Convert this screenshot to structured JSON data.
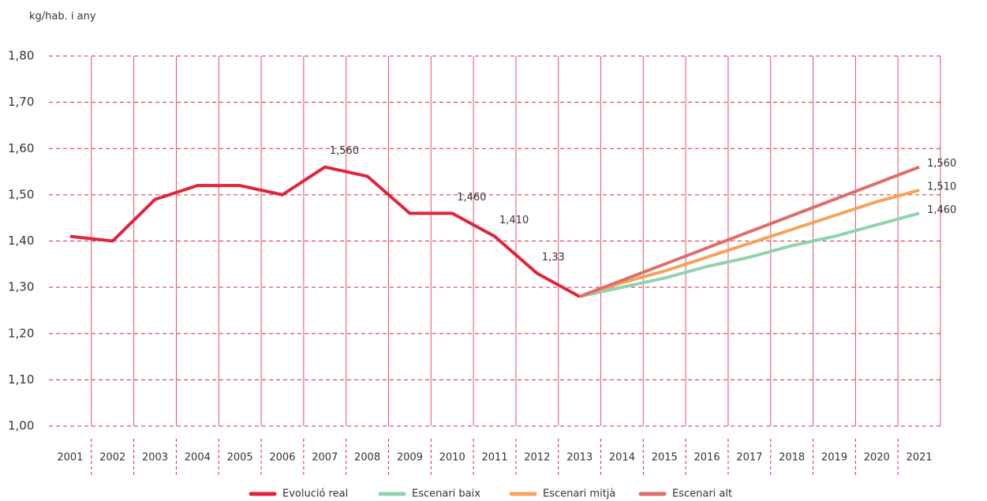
{
  "chart_data": {
    "type": "line",
    "y_axis_label": "kg/hab. i any",
    "categories": [
      "2001",
      "2002",
      "2003",
      "2004",
      "2005",
      "2006",
      "2007",
      "2008",
      "2009",
      "2010",
      "2011",
      "2012",
      "2013",
      "2014",
      "2015",
      "2016",
      "2017",
      "2018",
      "2019",
      "2020",
      "2021"
    ],
    "ylim": [
      1.0,
      1.8
    ],
    "yticks": [
      {
        "value": 1.0,
        "label": "1,00"
      },
      {
        "value": 1.1,
        "label": "1,10"
      },
      {
        "value": 1.2,
        "label": "1,20"
      },
      {
        "value": 1.3,
        "label": "1,30"
      },
      {
        "value": 1.4,
        "label": "1,40"
      },
      {
        "value": 1.5,
        "label": "1,50"
      },
      {
        "value": 1.6,
        "label": "1,60"
      },
      {
        "value": 1.7,
        "label": "1,70"
      },
      {
        "value": 1.8,
        "label": "1,80"
      }
    ],
    "grid": true,
    "grid_color": "#e0243c",
    "series": [
      {
        "name": "Evolució real",
        "color": "#e0243c",
        "width": 4,
        "values": [
          1.41,
          1.4,
          1.49,
          1.52,
          1.52,
          1.5,
          1.56,
          1.54,
          1.46,
          1.46,
          1.41,
          1.33,
          1.28,
          null,
          null,
          null,
          null,
          null,
          null,
          null,
          null
        ],
        "value_labels": [
          null,
          null,
          null,
          null,
          null,
          null,
          "1,560",
          null,
          null,
          "1,460",
          "1,410",
          "1,33",
          null,
          null,
          null,
          null,
          null,
          null,
          null,
          null,
          null
        ]
      },
      {
        "name": "Escenari baix",
        "color": "#8fd3b0",
        "width": 4,
        "values": [
          null,
          null,
          null,
          null,
          null,
          null,
          null,
          null,
          null,
          null,
          null,
          null,
          1.28,
          1.3,
          1.32,
          1.345,
          1.365,
          1.39,
          1.41,
          1.435,
          1.46
        ],
        "value_labels": [
          null,
          null,
          null,
          null,
          null,
          null,
          null,
          null,
          null,
          null,
          null,
          null,
          null,
          null,
          null,
          null,
          null,
          null,
          null,
          null,
          "1,460"
        ]
      },
      {
        "name": "Escenari mitjà",
        "color": "#f5a35a",
        "width": 4,
        "values": [
          null,
          null,
          null,
          null,
          null,
          null,
          null,
          null,
          null,
          null,
          null,
          null,
          1.28,
          1.31,
          1.335,
          1.365,
          1.395,
          1.425,
          1.455,
          1.485,
          1.51
        ],
        "value_labels": [
          null,
          null,
          null,
          null,
          null,
          null,
          null,
          null,
          null,
          null,
          null,
          null,
          null,
          null,
          null,
          null,
          null,
          null,
          null,
          null,
          "1,510"
        ]
      },
      {
        "name": "Escenari alt",
        "color": "#e06c6c",
        "width": 4,
        "values": [
          null,
          null,
          null,
          null,
          null,
          null,
          null,
          null,
          null,
          null,
          null,
          null,
          1.28,
          1.315,
          1.35,
          1.385,
          1.42,
          1.455,
          1.49,
          1.525,
          1.56
        ],
        "value_labels": [
          null,
          null,
          null,
          null,
          null,
          null,
          null,
          null,
          null,
          null,
          null,
          null,
          null,
          null,
          null,
          null,
          null,
          null,
          null,
          null,
          "1,560"
        ]
      }
    ]
  }
}
